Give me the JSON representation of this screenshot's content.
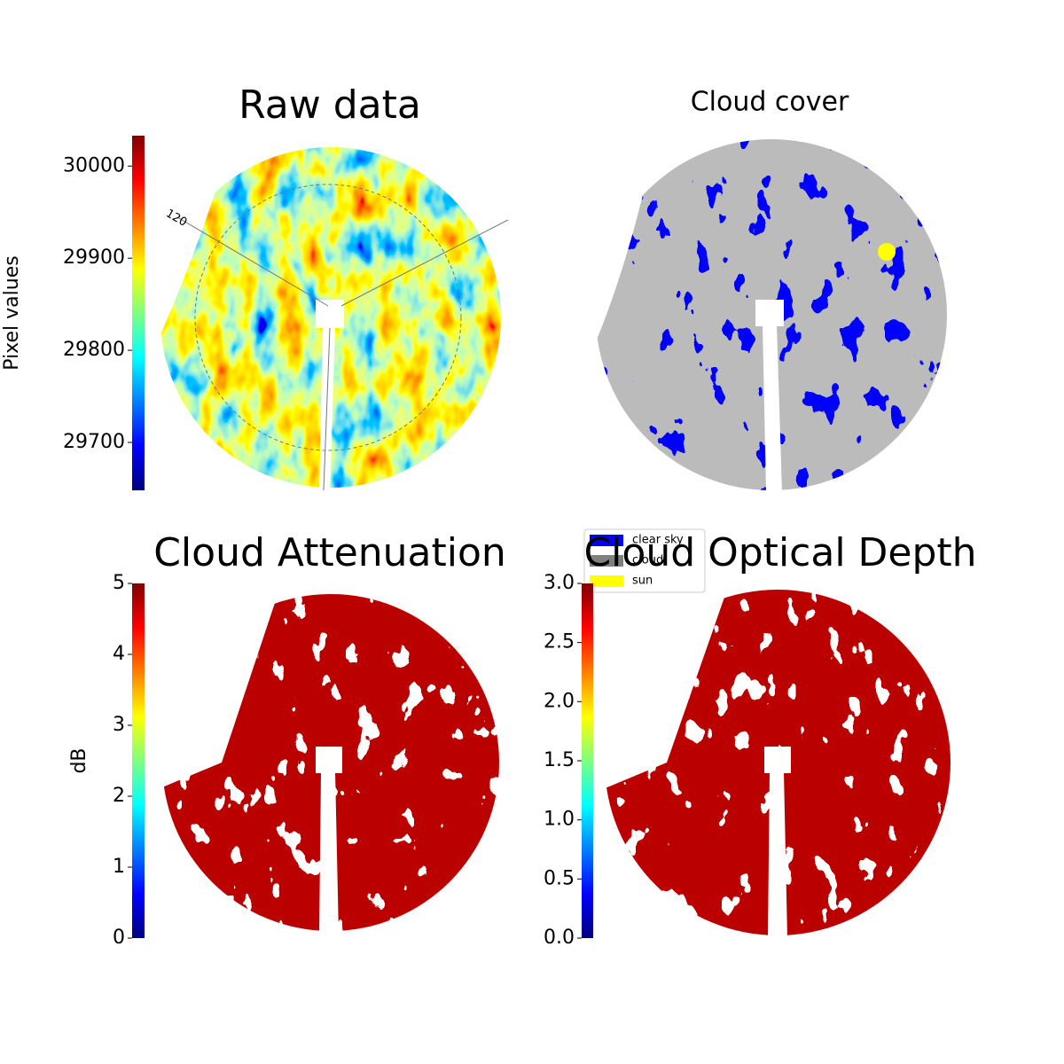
{
  "chart_data": [
    {
      "type": "image",
      "title": "Raw data",
      "annotations": [
        "120"
      ],
      "colorbar": {
        "label": "Pixel values",
        "lim": [
          29648,
          30033
        ],
        "ticks": [
          29700,
          29800,
          29900,
          30000
        ],
        "colormap": "jet"
      }
    },
    {
      "type": "image",
      "title": "Cloud cover",
      "legend": [
        {
          "name": "clear sky",
          "color": "#0000ff"
        },
        {
          "name": "cloud",
          "color": "#808080"
        },
        {
          "name": "sun",
          "color": "#ffff00"
        }
      ]
    },
    {
      "type": "image",
      "title": "Cloud Attenuation",
      "colorbar": {
        "label": "dB",
        "lim": [
          0,
          5
        ],
        "ticks": [
          0,
          1,
          2,
          3,
          4,
          5
        ],
        "colormap": "jet"
      }
    },
    {
      "type": "image",
      "title": "Cloud Optical Depth",
      "colorbar": {
        "lim": [
          0,
          3
        ],
        "ticks": [
          {
            "value": 0,
            "label": "0.0"
          },
          {
            "value": 0.5,
            "label": "0.5"
          },
          {
            "value": 1,
            "label": "1.0"
          },
          {
            "value": 1.5,
            "label": "1.5"
          },
          {
            "value": 2,
            "label": "2.0"
          },
          {
            "value": 2.5,
            "label": "2.5"
          },
          {
            "value": 3,
            "label": "3.0"
          }
        ],
        "colormap": "jet"
      }
    }
  ]
}
